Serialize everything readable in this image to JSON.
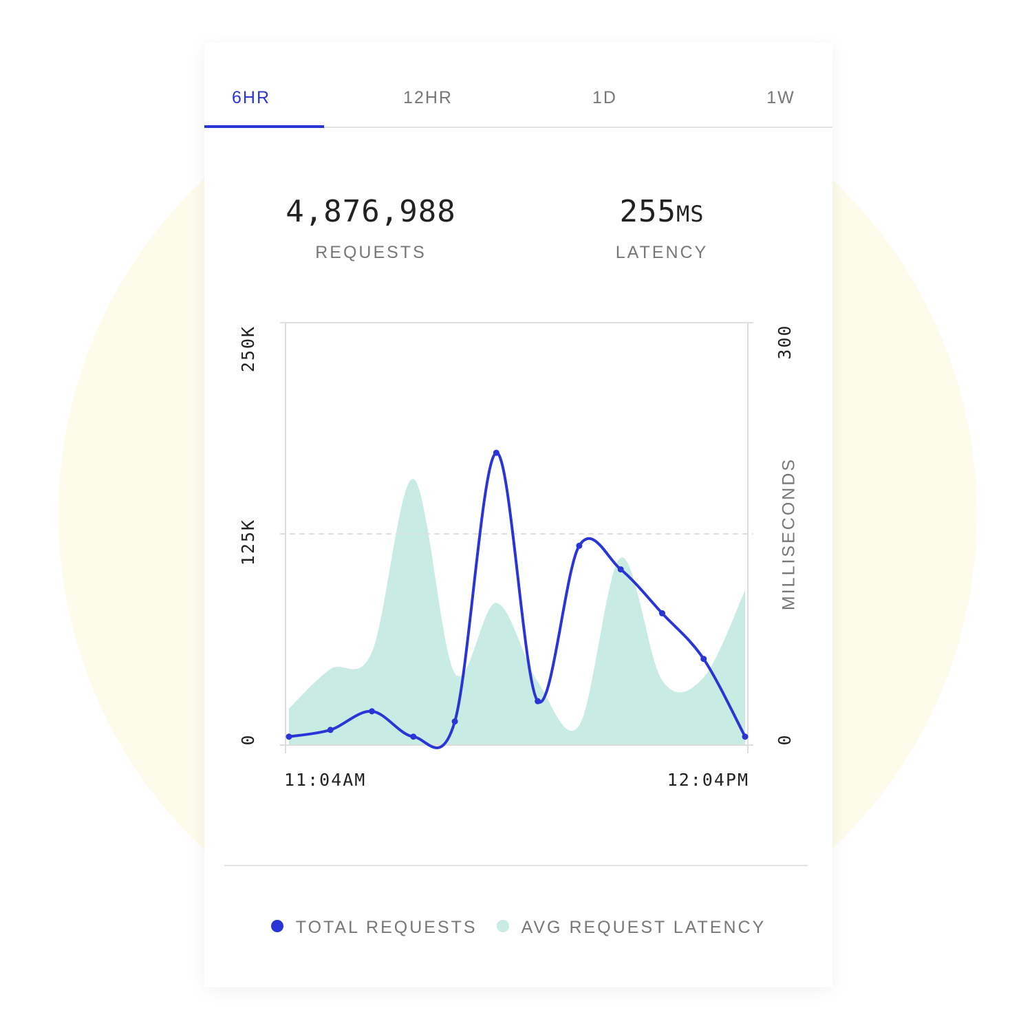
{
  "tabs": [
    "6HR",
    "12HR",
    "1D",
    "1W"
  ],
  "active_tab": 0,
  "stats": [
    {
      "value": "4,876,988",
      "label": "REQUESTS"
    },
    {
      "value": "255",
      "unit": "MS",
      "label": "LATENCY"
    }
  ],
  "chart_data": {
    "type": "line",
    "categories": [
      "11:04AM",
      null,
      null,
      null,
      null,
      null,
      null,
      null,
      null,
      null,
      null,
      "12:04PM"
    ],
    "ylim": [
      0,
      250000
    ],
    "yticks": [
      0,
      {
        "value": 125000,
        "label": "125K"
      },
      {
        "value": 250000,
        "label": "250K"
      }
    ],
    "y2lim": [
      0,
      300
    ],
    "y2ticks": [
      0,
      300
    ],
    "y2label": "MILLISECONDS",
    "grid": true,
    "series": [
      {
        "name": "TOTAL REQUESTS",
        "color": "#2a35d6",
        "values": [
          5000,
          9000,
          20000,
          5000,
          14000,
          173000,
          26000,
          118000,
          104000,
          78000,
          51000,
          5000
        ]
      },
      {
        "name": "AVG REQUEST LATENCY",
        "color": "#c8ece4",
        "axis": "y2",
        "values": [
          26,
          54,
          66,
          189,
          51,
          101,
          45,
          14,
          133,
          46,
          48,
          110
        ]
      }
    ]
  }
}
